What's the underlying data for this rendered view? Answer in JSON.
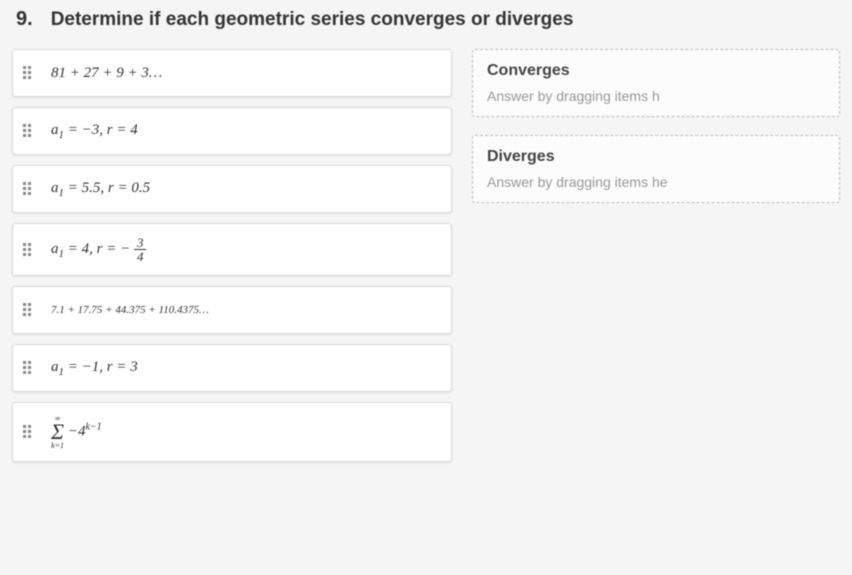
{
  "question": {
    "number": "9.",
    "text": "Determine if each geometric series converges or diverges"
  },
  "items": [
    {
      "key": "item1",
      "html": "81 + 27 + 9 + 3…"
    },
    {
      "key": "item2",
      "html": "a<sub>1</sub> = −3,  r = 4"
    },
    {
      "key": "item3",
      "html": "a<sub>1</sub> = 5.5,  r = 0.5"
    },
    {
      "key": "item4",
      "html": "a<sub>1</sub> = 4,  r = − <span class='frac'><span class='num'>3</span><span class='den'>4</span></span>"
    },
    {
      "key": "item5",
      "html": "7.1 + 17.75 + 44.375 + 110.4375…",
      "small": true
    },
    {
      "key": "item6",
      "html": "a<sub>1</sub> = −1,  r = 3"
    },
    {
      "key": "item7",
      "html": "<span class='sigma-wrap'><span class='sigma-limits'>∞</span><span class='sigma'>Σ</span><span class='sigma-limits'>k=1</span></span> −4<sup>k−1</sup>"
    }
  ],
  "zones": {
    "converges": {
      "title": "Converges",
      "hint": "Answer by dragging items h"
    },
    "diverges": {
      "title": "Diverges",
      "hint": "Answer by dragging items he"
    }
  }
}
